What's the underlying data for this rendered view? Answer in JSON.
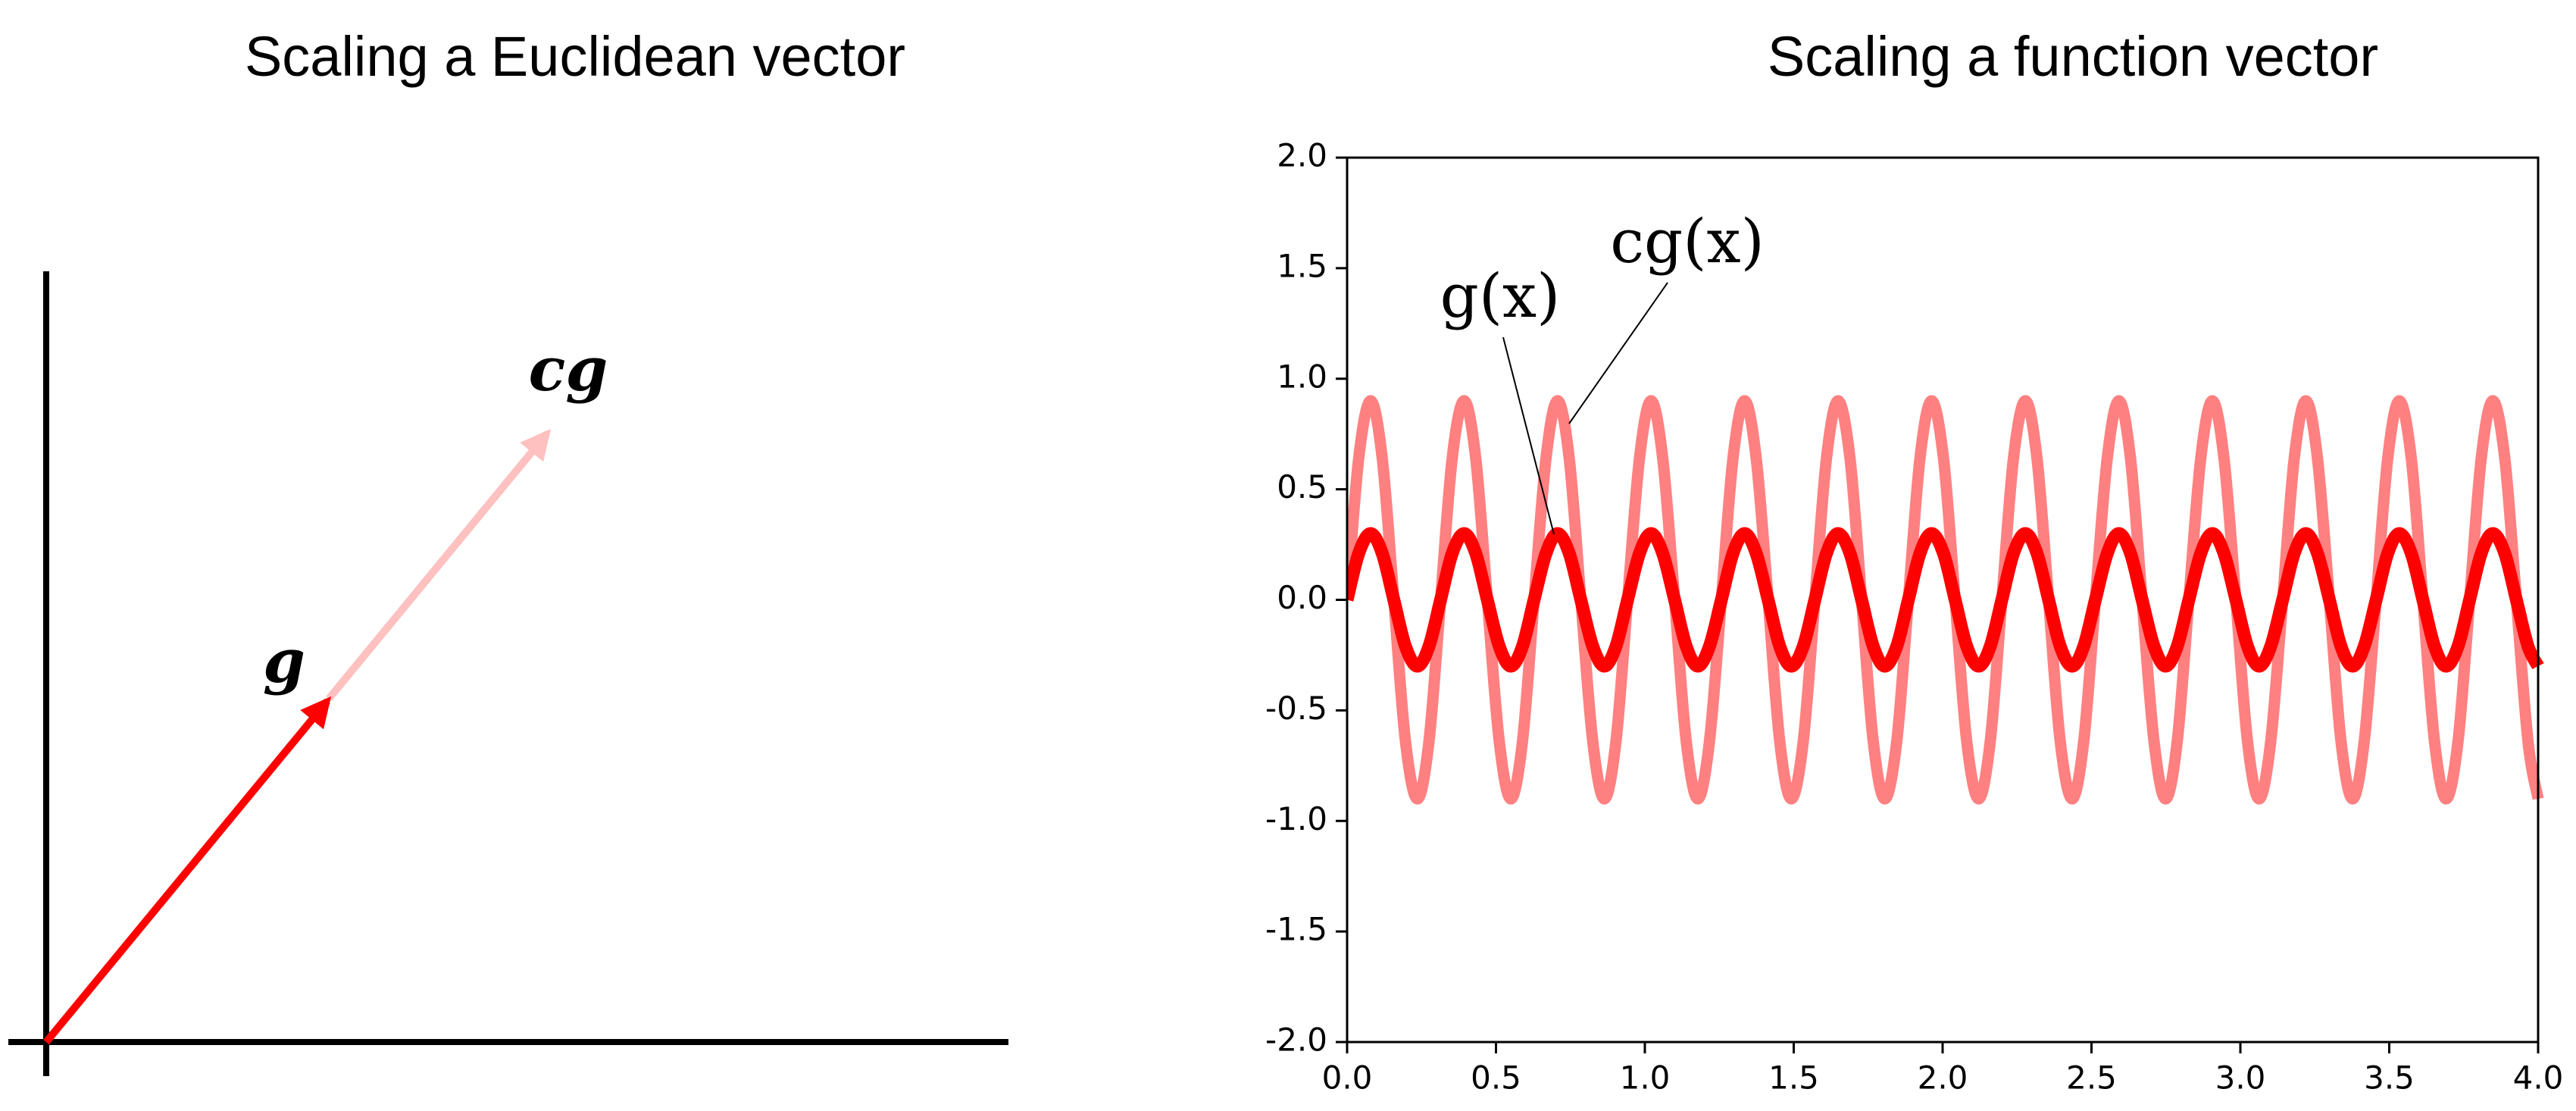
{
  "diagram": {
    "title": "Scaling a Euclidean vector",
    "vectors": [
      {
        "label": "g"
      },
      {
        "label": "cg"
      }
    ]
  },
  "chart_data": {
    "type": "line",
    "title": "Scaling a function vector",
    "x": [
      0,
      0.039,
      0.079,
      0.118,
      0.157,
      0.196,
      0.236,
      0.275,
      0.314,
      0.353,
      0.393,
      0.432,
      0.471,
      0.511,
      0.55,
      0.589,
      0.628,
      0.668,
      0.707,
      0.746,
      0.785,
      0.825,
      0.864,
      0.903,
      0.942,
      0.982,
      1.021,
      1.06,
      1.1,
      1.139,
      1.178,
      1.217,
      1.257,
      1.296,
      1.335,
      1.374,
      1.414,
      1.453,
      1.492,
      1.532,
      1.571,
      1.61,
      1.649,
      1.689,
      1.728,
      1.767,
      1.806,
      1.846,
      1.885,
      1.924,
      1.963,
      2.003,
      2.042,
      2.081,
      2.121,
      2.16,
      2.199,
      2.238,
      2.278,
      2.317,
      2.356,
      2.395,
      2.435,
      2.474,
      2.513,
      2.553,
      2.592,
      2.631,
      2.67,
      2.71,
      2.749,
      2.788,
      2.827,
      2.867,
      2.906,
      2.945,
      2.985,
      3.024,
      3.063,
      3.102,
      3.142,
      3.181,
      3.22,
      3.259,
      3.299,
      3.338,
      3.377,
      3.416,
      3.456,
      3.495,
      3.534,
      3.574,
      3.613,
      3.652,
      3.691,
      3.731,
      3.77,
      3.809,
      3.848,
      3.888,
      3.927,
      3.966,
      4
    ],
    "series": [
      {
        "name": "cg(x)",
        "color": "#ff8080",
        "values": [
          0,
          0.64,
          0.9,
          0.64,
          0,
          -0.64,
          -0.9,
          -0.64,
          0,
          0.64,
          0.9,
          0.64,
          0,
          -0.64,
          -0.9,
          -0.64,
          0,
          0.64,
          0.9,
          0.64,
          0,
          -0.64,
          -0.9,
          -0.64,
          0,
          0.64,
          0.9,
          0.64,
          0,
          -0.64,
          -0.9,
          -0.64,
          0,
          0.64,
          0.9,
          0.64,
          0,
          -0.64,
          -0.9,
          -0.64,
          0,
          0.64,
          0.9,
          0.64,
          0,
          -0.64,
          -0.9,
          -0.64,
          0,
          0.64,
          0.9,
          0.64,
          0,
          -0.64,
          -0.9,
          -0.64,
          0,
          0.64,
          0.9,
          0.64,
          0,
          -0.64,
          -0.9,
          -0.64,
          0,
          0.64,
          0.9,
          0.64,
          0,
          -0.64,
          -0.9,
          -0.64,
          0,
          0.64,
          0.9,
          0.64,
          0,
          -0.64,
          -0.9,
          -0.64,
          0,
          0.64,
          0.9,
          0.64,
          0,
          -0.64,
          -0.9,
          -0.64,
          0,
          0.64,
          0.9,
          0.64,
          0,
          -0.64,
          -0.9,
          -0.64,
          0,
          0.64,
          0.9,
          0.64,
          0,
          -0.64,
          -0.9
        ]
      },
      {
        "name": "g(x)",
        "color": "#ff0000",
        "values": [
          0,
          0.21,
          0.3,
          0.21,
          0,
          -0.21,
          -0.3,
          -0.21,
          0,
          0.21,
          0.3,
          0.21,
          0,
          -0.21,
          -0.3,
          -0.21,
          0,
          0.21,
          0.3,
          0.21,
          0,
          -0.21,
          -0.3,
          -0.21,
          0,
          0.21,
          0.3,
          0.21,
          0,
          -0.21,
          -0.3,
          -0.21,
          0,
          0.21,
          0.3,
          0.21,
          0,
          -0.21,
          -0.3,
          -0.21,
          0,
          0.21,
          0.3,
          0.21,
          0,
          -0.21,
          -0.3,
          -0.21,
          0,
          0.21,
          0.3,
          0.21,
          0,
          -0.21,
          -0.3,
          -0.21,
          0,
          0.21,
          0.3,
          0.21,
          0,
          -0.21,
          -0.3,
          -0.21,
          0,
          0.21,
          0.3,
          0.21,
          0,
          -0.21,
          -0.3,
          -0.21,
          0,
          0.21,
          0.3,
          0.21,
          0,
          -0.21,
          -0.3,
          -0.21,
          0,
          0.21,
          0.3,
          0.21,
          0,
          -0.21,
          -0.3,
          -0.21,
          0,
          0.21,
          0.3,
          0.21,
          0,
          -0.21,
          -0.3,
          -0.21,
          0,
          0.21,
          0.3,
          0.21,
          0,
          -0.21,
          -0.3
        ]
      }
    ],
    "xlim": [
      0,
      4
    ],
    "ylim": [
      -2,
      2
    ],
    "xticks": [
      {
        "value": 0,
        "label": "0.0"
      },
      0.5,
      {
        "value": 1,
        "label": "1.0"
      },
      1.5,
      {
        "value": 2,
        "label": "2.0"
      },
      2.5,
      {
        "value": 3,
        "label": "3.0"
      },
      3.5,
      {
        "value": 4,
        "label": "4.0"
      }
    ],
    "yticks": [
      {
        "value": -2,
        "label": "-2.0"
      },
      -1.5,
      {
        "value": -1,
        "label": "-1.0"
      },
      -0.5,
      {
        "value": 0,
        "label": "0.0"
      },
      0.5,
      {
        "value": 1,
        "label": "1.0"
      },
      1.5,
      {
        "value": 2,
        "label": "2.0"
      }
    ],
    "grid": false
  }
}
